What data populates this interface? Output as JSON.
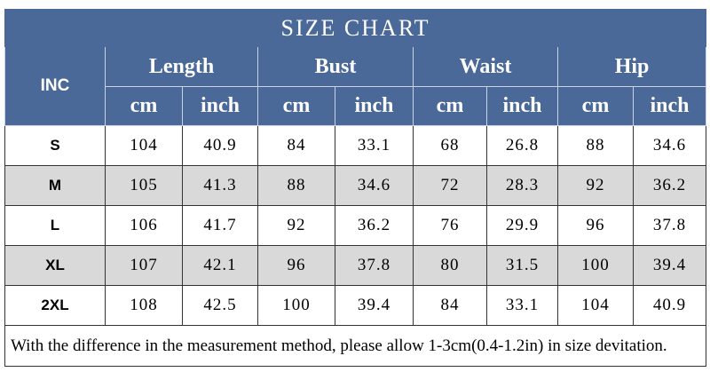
{
  "table": {
    "title": "SIZE CHART",
    "row_header": "INC",
    "groups": [
      {
        "name": "Length",
        "units": [
          "cm",
          "inch"
        ]
      },
      {
        "name": "Bust",
        "units": [
          "cm",
          "inch"
        ]
      },
      {
        "name": "Waist",
        "units": [
          "cm",
          "inch"
        ]
      },
      {
        "name": "Hip",
        "units": [
          "cm",
          "inch"
        ]
      }
    ],
    "rows": [
      {
        "size": "S",
        "values": [
          104,
          40.9,
          84,
          33.1,
          68,
          26.8,
          88,
          34.6
        ]
      },
      {
        "size": "M",
        "values": [
          105,
          41.3,
          88,
          34.6,
          72,
          28.3,
          92,
          36.2
        ]
      },
      {
        "size": "L",
        "values": [
          106,
          41.7,
          92,
          36.2,
          76,
          29.9,
          96,
          37.8
        ]
      },
      {
        "size": "XL",
        "values": [
          107,
          42.1,
          96,
          37.8,
          80,
          31.5,
          100,
          39.4
        ]
      },
      {
        "size": "2XL",
        "values": [
          108,
          42.5,
          100,
          39.4,
          84,
          33.1,
          104,
          40.9
        ]
      }
    ],
    "note": "With the difference in the measurement method, please allow 1-3cm(0.4-1.2in) in size devitation."
  }
}
